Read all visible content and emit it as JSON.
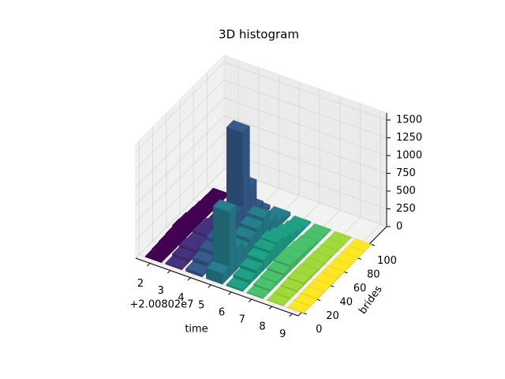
{
  "chart_data": {
    "type": "bar3d",
    "title": "3D histogram",
    "xlabel": "time",
    "ylabel": "brides",
    "x_offset_text": "+2.00802e7",
    "x": [
      2,
      3,
      4,
      5,
      6,
      7,
      8,
      9
    ],
    "y_bins": [
      0,
      10,
      20,
      30,
      40,
      50,
      60,
      70,
      80,
      90,
      100
    ],
    "values": [
      [
        10,
        20,
        30,
        40,
        60,
        50,
        30,
        20,
        10,
        5
      ],
      [
        20,
        50,
        80,
        60,
        90,
        70,
        40,
        30,
        20,
        10
      ],
      [
        40,
        100,
        150,
        200,
        300,
        400,
        1450,
        600,
        200,
        50
      ],
      [
        150,
        920,
        300,
        200,
        250,
        300,
        350,
        200,
        100,
        50
      ],
      [
        20,
        60,
        100,
        150,
        180,
        200,
        150,
        100,
        50,
        20
      ],
      [
        10,
        30,
        40,
        60,
        80,
        70,
        60,
        40,
        20,
        10
      ],
      [
        5,
        10,
        20,
        30,
        30,
        20,
        20,
        10,
        5,
        2
      ],
      [
        2,
        5,
        10,
        10,
        10,
        10,
        5,
        5,
        2,
        1
      ]
    ],
    "colors": [
      "#440154",
      "#46327e",
      "#365c8d",
      "#277f8e",
      "#1fa187",
      "#4ac16d",
      "#a0da39",
      "#fde725"
    ],
    "xlim": [
      1.3,
      9.3
    ],
    "ylim": [
      -5,
      125
    ],
    "zlim": [
      0,
      1600
    ],
    "xticks": [
      2,
      3,
      4,
      5,
      6,
      7,
      8,
      9
    ],
    "yticks": [
      0,
      20,
      40,
      60,
      80,
      100
    ],
    "zticks": [
      0,
      250,
      500,
      750,
      1000,
      1250,
      1500
    ],
    "grid": true
  }
}
